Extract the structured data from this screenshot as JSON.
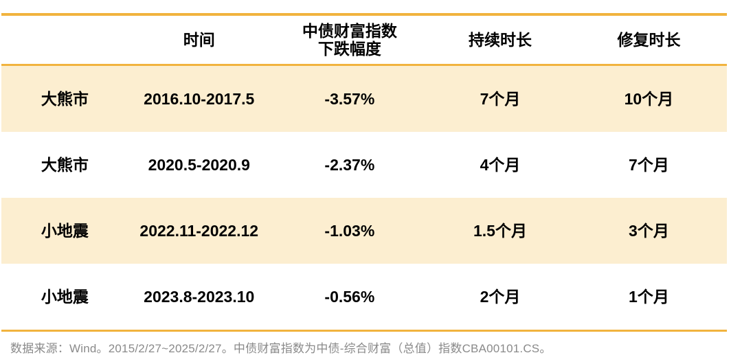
{
  "chart_data": {
    "type": "table",
    "columns": [
      "",
      "时间",
      "中债财富指数\n下跌幅度",
      "持续时长",
      "修复时长"
    ],
    "rows": [
      [
        "大熊市",
        "2016.10-2017.5",
        "-3.57%",
        "7个月",
        "10个月"
      ],
      [
        "大熊市",
        "2020.5-2020.9",
        "-2.37%",
        "4个月",
        "7个月"
      ],
      [
        "小地震",
        "2022.11-2022.12",
        "-1.03%",
        "1.5个月",
        "3个月"
      ],
      [
        "小地震",
        "2023.8-2023.10",
        "-0.56%",
        "2个月",
        "1个月"
      ]
    ],
    "highlighted_rows": [
      0,
      2
    ],
    "legend_position": "none",
    "grid": "horizontal-accent-rules-only"
  },
  "footer": {
    "source_note": "数据来源：Wind。2015/2/27~2025/2/27。中债财富指数为中债-综合财富（总值）指数CBA00101.CS。"
  },
  "colors": {
    "accent_line": "#F1B33E",
    "row_highlight": "#FCEED0",
    "table_text": "#000000",
    "footer_text": "#8A8A8A",
    "background": "#FFFFFF"
  }
}
